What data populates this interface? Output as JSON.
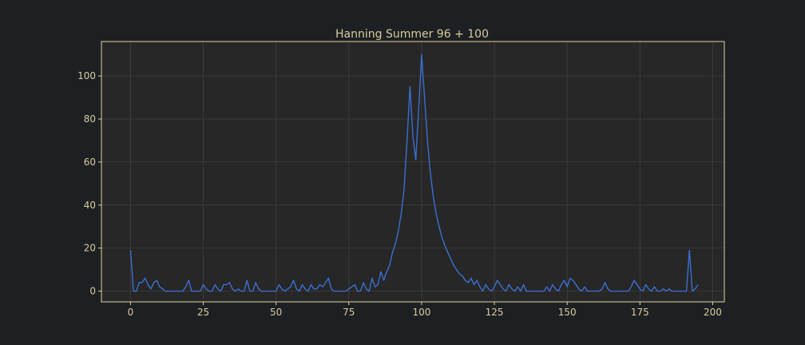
{
  "colors": {
    "background": "#1d2022",
    "plot_bg": "#272727",
    "frame": "#e0d4a0",
    "grid": "#3f3f3f",
    "text": "#d8cba0",
    "line": "#3b6fd1"
  },
  "chart_data": {
    "type": "line",
    "title": "Hanning Summer 96 + 100",
    "xlabel": "",
    "ylabel": "",
    "xlim": [
      -10,
      204
    ],
    "ylim": [
      -5,
      116
    ],
    "xticks": [
      0,
      25,
      50,
      75,
      100,
      125,
      150,
      175,
      200
    ],
    "yticks": [
      0,
      20,
      40,
      60,
      80,
      100
    ],
    "grid": true,
    "legend": "none",
    "series": [
      {
        "name": "",
        "x": [
          0,
          1,
          2,
          3,
          4,
          5,
          6,
          7,
          8,
          9,
          10,
          11,
          12,
          13,
          14,
          15,
          16,
          17,
          18,
          19,
          20,
          21,
          22,
          23,
          24,
          25,
          26,
          27,
          28,
          29,
          30,
          31,
          32,
          33,
          34,
          35,
          36,
          37,
          38,
          39,
          40,
          41,
          42,
          43,
          44,
          45,
          46,
          47,
          48,
          49,
          50,
          51,
          52,
          53,
          54,
          55,
          56,
          57,
          58,
          59,
          60,
          61,
          62,
          63,
          64,
          65,
          66,
          67,
          68,
          69,
          70,
          71,
          72,
          73,
          74,
          75,
          76,
          77,
          78,
          79,
          80,
          81,
          82,
          83,
          84,
          85,
          86,
          87,
          88,
          89,
          90,
          91,
          92,
          93,
          94,
          95,
          96,
          97,
          98,
          99,
          100,
          101,
          102,
          103,
          104,
          105,
          106,
          107,
          108,
          109,
          110,
          111,
          112,
          113,
          114,
          115,
          116,
          117,
          118,
          119,
          120,
          121,
          122,
          123,
          124,
          125,
          126,
          127,
          128,
          129,
          130,
          131,
          132,
          133,
          134,
          135,
          136,
          137,
          138,
          139,
          140,
          141,
          142,
          143,
          144,
          145,
          146,
          147,
          148,
          149,
          150,
          151,
          152,
          153,
          154,
          155,
          156,
          157,
          158,
          159,
          160,
          161,
          162,
          163,
          164,
          165,
          166,
          167,
          168,
          169,
          170,
          171,
          172,
          173,
          174,
          175,
          176,
          177,
          178,
          179,
          180,
          181,
          182,
          183,
          184,
          185,
          186,
          187,
          188,
          189,
          190,
          191,
          192,
          193,
          194,
          195
        ],
        "y": [
          19,
          0,
          0,
          4,
          4,
          6,
          3,
          1,
          4,
          5,
          2,
          1,
          0,
          0,
          0,
          0,
          0,
          0,
          0,
          2,
          5,
          0,
          0,
          0,
          0,
          3,
          1,
          0,
          0,
          3,
          1,
          0,
          3,
          3,
          4,
          1,
          0,
          1,
          0,
          0,
          5,
          0,
          0,
          4,
          1,
          0,
          0,
          0,
          0,
          0,
          0,
          3,
          1,
          0,
          1,
          2,
          5,
          1,
          0,
          3,
          1,
          0,
          3,
          1,
          1,
          3,
          2,
          4,
          6,
          1,
          0,
          0,
          0,
          0,
          0,
          1,
          2,
          3,
          0,
          0,
          4,
          1,
          0,
          6,
          2,
          3,
          9,
          5,
          9,
          12,
          18,
          22,
          28,
          36,
          48,
          70,
          95,
          72,
          61,
          85,
          110,
          90,
          70,
          55,
          44,
          36,
          30,
          25,
          21,
          18,
          15,
          12,
          10,
          8,
          7,
          5,
          4,
          6,
          3,
          5,
          2,
          0,
          3,
          1,
          0,
          2,
          5,
          3,
          1,
          0,
          3,
          1,
          0,
          2,
          0,
          3,
          0,
          0,
          0,
          0,
          0,
          0,
          0,
          2,
          0,
          3,
          1,
          0,
          3,
          5,
          2,
          6,
          5,
          3,
          1,
          0,
          2,
          0,
          0,
          0,
          0,
          0,
          1,
          4,
          1,
          0,
          0,
          0,
          0,
          0,
          0,
          0,
          2,
          5,
          3,
          1,
          0,
          3,
          1,
          0,
          2,
          0,
          0,
          1,
          0,
          1,
          0,
          0,
          0,
          0,
          0,
          0,
          19,
          0,
          1,
          3
        ]
      }
    ]
  }
}
